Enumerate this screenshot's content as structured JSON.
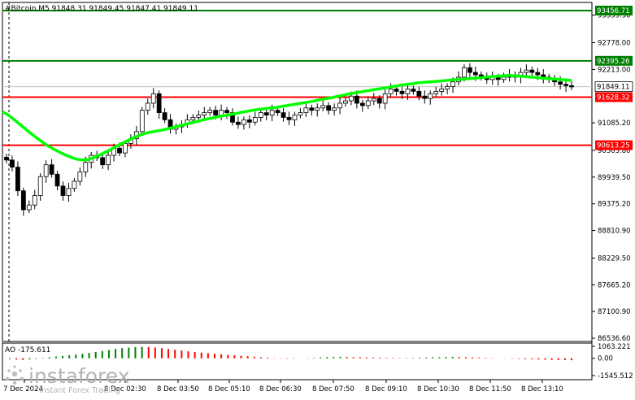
{
  "chart_data": {
    "type": "candlestick",
    "symbol_line": "#Bitcoin,M5  91848.31 91849.45 91847.41 91849.11",
    "price_axis": {
      "labels": [
        "93456.71",
        "93359.30",
        "92778.00",
        "92395.26",
        "92213.00",
        "91849.11",
        "91628.32",
        "91085.20",
        "90613.25",
        "90503.80",
        "89939.50",
        "89375.20",
        "88810.90",
        "88229.50",
        "87665.20",
        "87100.90",
        "86536.60"
      ],
      "ylim": [
        86536.6,
        93456.71
      ]
    },
    "time_axis": {
      "labels": [
        "7 Dec 2024",
        "8 Dec 02:30",
        "8 Dec 03:50",
        "8 Dec 05:10",
        "8 Dec 06:30",
        "8 Dec 07:50",
        "8 Dec 09:10",
        "8 Dec 10:30",
        "8 Dec 11:50",
        "8 Dec 13:10"
      ]
    },
    "levels": [
      {
        "price": 93456.71,
        "label": "93456.71",
        "color": "#008000"
      },
      {
        "price": 92395.26,
        "label": "92395.26",
        "color": "#008000"
      },
      {
        "price": 91628.32,
        "label": "91628.32",
        "color": "#ff0000"
      },
      {
        "price": 90613.25,
        "label": "90613.25",
        "color": "#ff0000"
      }
    ],
    "current_price": {
      "value": 91849.11,
      "label": "91849.11"
    },
    "close_series": [
      90300,
      90150,
      89650,
      89250,
      89350,
      89550,
      89950,
      90200,
      90000,
      89750,
      89550,
      89700,
      89850,
      90050,
      90250,
      90400,
      90350,
      90200,
      90400,
      90550,
      90450,
      90650,
      90750,
      90900,
      91350,
      91500,
      91700,
      91300,
      91150,
      90950,
      91000,
      91050,
      91150,
      91200,
      91250,
      91300,
      91350,
      91250,
      91350,
      91300,
      91100,
      91050,
      91150,
      91100,
      91200,
      91300,
      91250,
      91350,
      91300,
      91200,
      91150,
      91250,
      91300,
      91400,
      91350,
      91400,
      91450,
      91350,
      91400,
      91500,
      91550,
      91650,
      91500,
      91450,
      91550,
      91600,
      91500,
      91700,
      91800,
      91750,
      91700,
      91800,
      91750,
      91650,
      91600,
      91700,
      91750,
      91800,
      91850,
      91950,
      92050,
      92250,
      92150,
      92100,
      92050,
      92000,
      92050,
      92000,
      92050,
      92100,
      92050,
      92150,
      92200,
      92150,
      92100,
      92050,
      92000,
      91950,
      91900,
      91870,
      91849
    ],
    "ma_series": [
      91320,
      91250,
      91160,
      91060,
      90960,
      90860,
      90770,
      90680,
      90600,
      90530,
      90470,
      90410,
      90360,
      90320,
      90300,
      90310,
      90350,
      90400,
      90460,
      90520,
      90590,
      90650,
      90710,
      90770,
      90820,
      90860,
      90890,
      90910,
      90930,
      90960,
      90990,
      91020,
      91050,
      91080,
      91110,
      91140,
      91170,
      91190,
      91220,
      91240,
      91260,
      91280,
      91310,
      91330,
      91350,
      91370,
      91380,
      91400,
      91410,
      91430,
      91450,
      91470,
      91490,
      91510,
      91530,
      91550,
      91580,
      91600,
      91620,
      91650,
      91670,
      91700,
      91720,
      91740,
      91760,
      91780,
      91800,
      91820,
      91840,
      91860,
      91880,
      91900,
      91910,
      91930,
      91940,
      91950,
      91960,
      91970,
      91980,
      91990,
      92000,
      92010,
      92020,
      92030,
      92040,
      92050,
      92060,
      92070,
      92080,
      92090,
      92080,
      92070,
      92060,
      92050,
      92040,
      92030,
      92020,
      92010,
      92000,
      91990,
      91980
    ],
    "indicator": {
      "label": "AO -175.611",
      "axis_labels": [
        "1063.221",
        "0.00",
        "-1545.512"
      ],
      "ylim": [
        -1545.512,
        1063.221
      ],
      "values": [
        -80,
        -120,
        -150,
        -100,
        -50,
        40,
        90,
        150,
        200,
        260,
        320,
        390,
        470,
        560,
        650,
        740,
        830,
        900,
        950,
        990,
        1010,
        1000,
        960,
        900,
        830,
        760,
        690,
        620,
        560,
        500,
        450,
        400,
        350,
        300,
        260,
        220,
        180,
        140,
        100,
        60,
        20,
        -20,
        -40,
        -30,
        -10,
        20,
        50,
        80,
        100,
        110,
        120,
        110,
        100,
        90,
        80,
        70,
        60,
        50,
        40,
        30,
        30,
        40,
        60,
        80,
        90,
        100,
        110,
        120,
        110,
        100,
        90,
        70,
        50,
        30,
        10,
        -10,
        -30,
        -50,
        -70,
        -90,
        -110,
        -130,
        -150,
        -160,
        -170,
        -175
      ]
    },
    "colors": {
      "bull_candle": "#ffffff",
      "bear_candle": "#000000",
      "ma_line": "#00ff00",
      "ao_up": "#008000",
      "ao_down": "#ff0000"
    }
  },
  "watermark": {
    "brand": "instaforex",
    "tagline": "Instant Forex Trading"
  }
}
